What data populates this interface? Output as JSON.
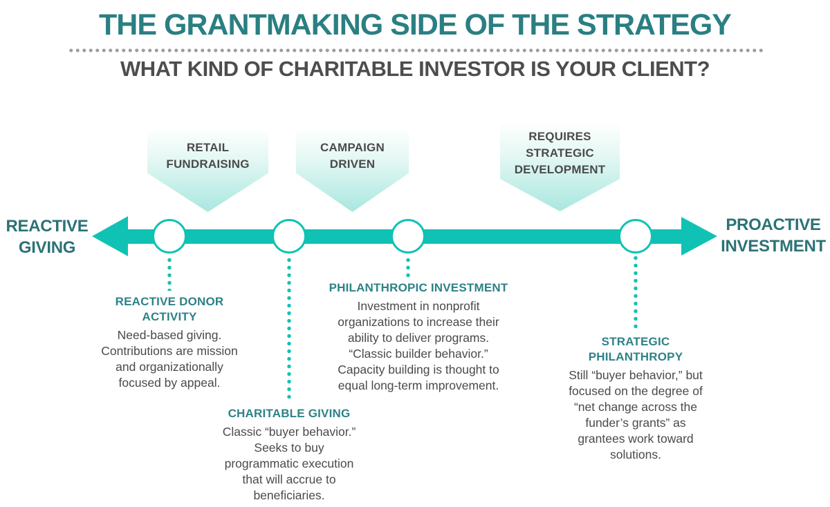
{
  "header": {
    "title": "THE GRANTMAKING SIDE OF THE STRATEGY",
    "subtitle": "WHAT KIND OF CHARITABLE INVESTOR IS YOUR CLIENT?"
  },
  "axis": {
    "left_label": "REACTIVE\nGIVING",
    "right_label": "PROACTIVE\nINVESTMENT"
  },
  "pointers": [
    {
      "label": "RETAIL\nFUNDRAISING"
    },
    {
      "label": "CAMPAIGN\nDRIVEN"
    },
    {
      "label": "REQUIRES\nSTRATEGIC\nDEVELOPMENT"
    }
  ],
  "segments": [
    {
      "title": "REACTIVE DONOR\nACTIVITY",
      "body": "Need-based giving.\nContributions are mission\nand organizationally\nfocused by appeal."
    },
    {
      "title": "CHARITABLE GIVING",
      "body": "Classic “buyer behavior.”\nSeeks to buy\nprogrammatic execution\nthat will accrue to\nbeneficiaries."
    },
    {
      "title": "PHILANTHROPIC INVESTMENT",
      "body": "Investment in nonprofit\norganizations to increase their\nability to deliver programs.\n“Classic builder behavior.”\nCapacity building is thought to\nequal long-term improvement."
    },
    {
      "title": "STRATEGIC\nPHILANTHROPY",
      "body": "Still “buyer behavior,” but\nfocused on the degree of\n“net change across the\nfunder’s grants” as\ngrantees work toward\nsolutions."
    }
  ],
  "colors": {
    "timeline_teal": "#10c2b4",
    "dark_teal_labels": "#2c7276",
    "section_title_teal": "#2c8286",
    "title_teal": "#2a7f82",
    "body_gray": "#4a4a4a",
    "divider_gray": "#9d9d9d",
    "pointer_gradient_bottom": "#a9e7df"
  }
}
